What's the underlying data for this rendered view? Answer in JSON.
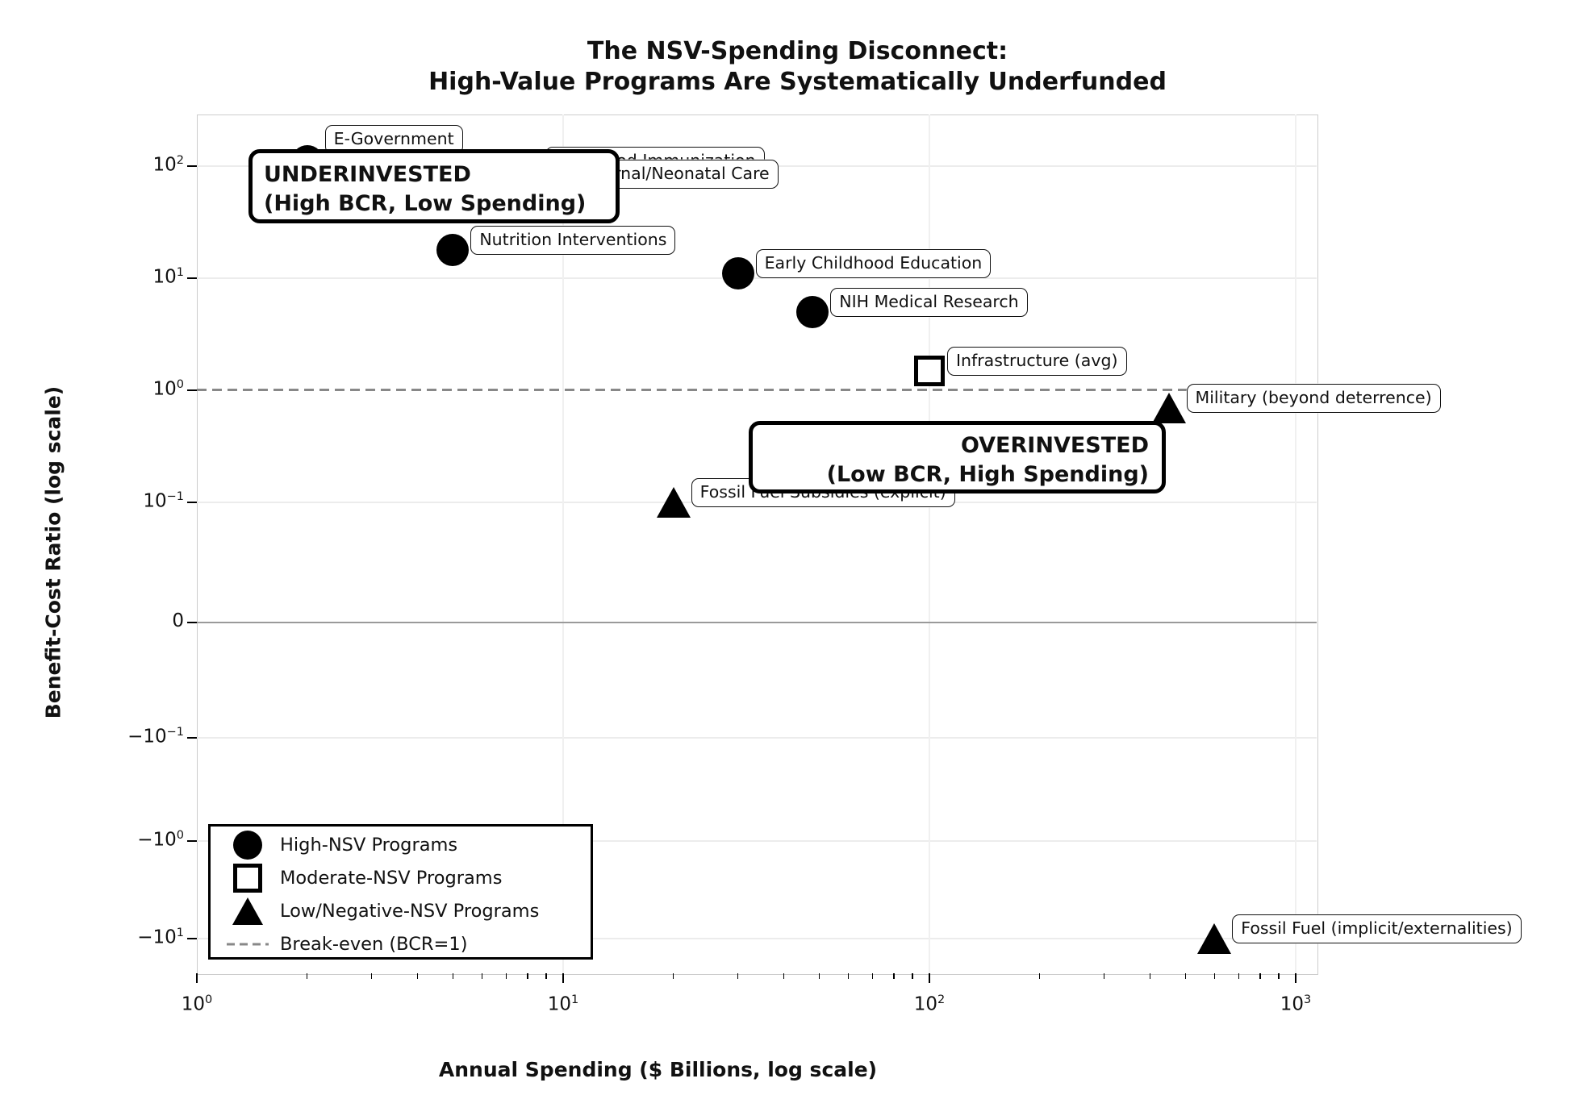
{
  "title": {
    "line1": "The NSV-Spending Disconnect:",
    "line2": "High-Value Programs Are Systematically Underfunded"
  },
  "x_axis": {
    "label": "Annual Spending ($ Billions, log scale)",
    "ticks": [
      {
        "base": "10",
        "exp": "0",
        "value": 1
      },
      {
        "base": "10",
        "exp": "1",
        "value": 10
      },
      {
        "base": "10",
        "exp": "2",
        "value": 100
      },
      {
        "base": "10",
        "exp": "3",
        "value": 1000
      }
    ]
  },
  "y_axis": {
    "label": "Benefit-Cost Ratio (log scale)",
    "ticks": [
      {
        "base": "10",
        "exp": "2",
        "value": 100
      },
      {
        "base": "10",
        "exp": "1",
        "value": 10
      },
      {
        "base": "10",
        "exp": "0",
        "value": 1
      },
      {
        "base": "10",
        "exp": "−1",
        "value": 0.1
      },
      {
        "base": "0",
        "exp": "",
        "value": 0
      },
      {
        "base": "−10",
        "exp": "−1",
        "value": -0.1
      },
      {
        "base": "−10",
        "exp": "0",
        "value": -1
      },
      {
        "base": "−10",
        "exp": "1",
        "value": -10
      }
    ]
  },
  "annotations": {
    "underinvested": {
      "line1": "UNDERINVESTED",
      "line2": "(High BCR, Low Spending)"
    },
    "overinvested": {
      "line1": "OVERINVESTED",
      "line2": "(Low BCR, High Spending)"
    }
  },
  "legend": {
    "items": [
      {
        "marker": "circle",
        "label": "High-NSV Programs"
      },
      {
        "marker": "square",
        "label": "Moderate-NSV Programs"
      },
      {
        "marker": "triangle",
        "label": "Low/Negative-NSV Programs"
      },
      {
        "marker": "dash",
        "label": "Break-even (BCR=1)"
      }
    ]
  },
  "colors": {
    "marker": "#000000",
    "break_even_line": "#888888",
    "grid": "#ececec",
    "zero_line": "#9a9a9a",
    "box_border": "#000000",
    "background": "#ffffff"
  },
  "chart_data": {
    "type": "scatter",
    "title": "The NSV-Spending Disconnect: High-Value Programs Are Systematically Underfunded",
    "xlabel": "Annual Spending ($ Billions, log scale)",
    "ylabel": "Benefit-Cost Ratio (log scale)",
    "x_scale": "log",
    "y_scale": "symlog",
    "xlim": [
      1,
      1150
    ],
    "ylim": [
      -23,
      290
    ],
    "grid": true,
    "legend_position": "lower left",
    "break_even": {
      "value": 1,
      "label": "Break-even (BCR=1)"
    },
    "points": [
      {
        "name": "E-Government",
        "spending_billions": 2,
        "bcr": 110,
        "marker": "circle",
        "group": "High-NSV Programs"
      },
      {
        "name": "Childhood Immunization",
        "spending_billions": 8,
        "bcr": 90,
        "marker": "circle",
        "group": "High-NSV Programs"
      },
      {
        "name": "Maternal/Neonatal Care",
        "spending_billions": 9,
        "bcr": 70,
        "marker": "circle",
        "group": "High-NSV Programs"
      },
      {
        "name": "Nutrition Interventions",
        "spending_billions": 5,
        "bcr": 18,
        "marker": "circle",
        "group": "High-NSV Programs"
      },
      {
        "name": "Early Childhood Education",
        "spending_billions": 30,
        "bcr": 11,
        "marker": "circle",
        "group": "High-NSV Programs"
      },
      {
        "name": "NIH Medical Research",
        "spending_billions": 48,
        "bcr": 5,
        "marker": "circle",
        "group": "High-NSV Programs"
      },
      {
        "name": "Infrastructure (avg)",
        "spending_billions": 100,
        "bcr": 1.5,
        "marker": "square",
        "group": "Moderate-NSV Programs"
      },
      {
        "name": "Military (beyond deterrence)",
        "spending_billions": 450,
        "bcr": 0.7,
        "marker": "triangle",
        "group": "Low/Negative-NSV Programs"
      },
      {
        "name": "Fossil Fuel Subsidies (explicit)",
        "spending_billions": 20,
        "bcr": 0.1,
        "marker": "triangle",
        "group": "Low/Negative-NSV Programs"
      },
      {
        "name": "Fossil Fuel (implicit/externalities)",
        "spending_billions": 600,
        "bcr": -10,
        "marker": "triangle",
        "group": "Low/Negative-NSV Programs"
      }
    ]
  }
}
